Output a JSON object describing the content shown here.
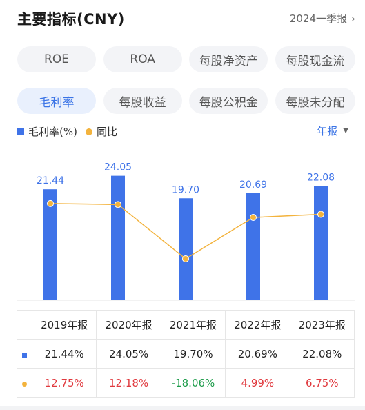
{
  "header": {
    "title": "主要指标(CNY)",
    "period": "2024一季报"
  },
  "pills": [
    {
      "label": "ROE",
      "active": false
    },
    {
      "label": "ROA",
      "active": false
    },
    {
      "label": "每股净资产",
      "active": false
    },
    {
      "label": "每股现金流",
      "active": false
    },
    {
      "label": "毛利率",
      "active": true
    },
    {
      "label": "每股收益",
      "active": false
    },
    {
      "label": "每股公积金",
      "active": false
    },
    {
      "label": "每股未分配",
      "active": false
    }
  ],
  "legend": {
    "bar_label": "毛利率(%)",
    "line_label": "同比",
    "period_select": "年报"
  },
  "colors": {
    "bar": "#3f73e8",
    "line": "#f3b33d",
    "positive": "#e0393e",
    "negative": "#1e9c4b",
    "active": "#3b74e6"
  },
  "chart_data": {
    "type": "bar",
    "categories": [
      "2019年报",
      "2020年报",
      "2021年报",
      "2022年报",
      "2023年报"
    ],
    "series": [
      {
        "name": "毛利率(%)",
        "type": "bar",
        "values": [
          21.44,
          24.05,
          19.7,
          20.69,
          22.08
        ]
      },
      {
        "name": "同比",
        "type": "line",
        "values": [
          12.75,
          12.18,
          -18.06,
          4.99,
          6.75
        ]
      }
    ],
    "value_labels": [
      "21.44",
      "24.05",
      "19.70",
      "20.69",
      "22.08"
    ]
  },
  "table": {
    "headers": [
      "2019年报",
      "2020年报",
      "2021年报",
      "2022年报",
      "2023年报"
    ],
    "rows": [
      {
        "marker": "bar",
        "cells": [
          "21.44%",
          "24.05%",
          "19.70%",
          "20.69%",
          "22.08%"
        ]
      },
      {
        "marker": "line",
        "cells": [
          "12.75%",
          "12.18%",
          "-18.06%",
          "4.99%",
          "6.75%"
        ]
      }
    ]
  }
}
